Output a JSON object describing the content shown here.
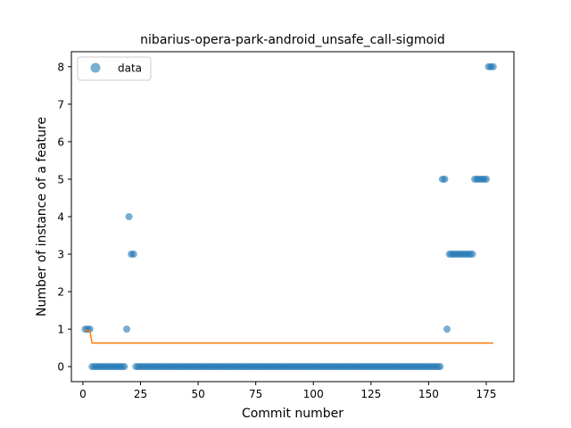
{
  "chart_data": {
    "type": "scatter",
    "title": "nibarius-opera-park-android_unsafe_call-sigmoid",
    "xlabel": "Commit number",
    "ylabel": "Number of instance of a feature",
    "xlim": [
      -5,
      187
    ],
    "ylim": [
      -0.4,
      8.4
    ],
    "xticks": [
      0,
      25,
      50,
      75,
      100,
      125,
      150,
      175
    ],
    "yticks": [
      0,
      1,
      2,
      3,
      4,
      5,
      6,
      7,
      8
    ],
    "grid": false,
    "legend": {
      "position": "top-left",
      "entries": [
        "data"
      ]
    },
    "colors": {
      "data": "#1f77b4",
      "fit": "#ff7f0e"
    },
    "series": [
      {
        "name": "data",
        "kind": "scatter",
        "x": [
          1,
          2,
          3,
          4,
          5,
          6,
          7,
          8,
          9,
          10,
          11,
          12,
          13,
          14,
          15,
          16,
          17,
          18,
          19,
          20,
          21,
          22,
          23,
          24,
          25,
          26,
          27,
          28,
          29,
          30,
          31,
          32,
          33,
          34,
          35,
          36,
          37,
          38,
          39,
          40,
          41,
          42,
          43,
          44,
          45,
          46,
          47,
          48,
          49,
          50,
          51,
          52,
          53,
          54,
          55,
          56,
          57,
          58,
          59,
          60,
          61,
          62,
          63,
          64,
          65,
          66,
          67,
          68,
          69,
          70,
          71,
          72,
          73,
          74,
          75,
          76,
          77,
          78,
          79,
          80,
          81,
          82,
          83,
          84,
          85,
          86,
          87,
          88,
          89,
          90,
          91,
          92,
          93,
          94,
          95,
          96,
          97,
          98,
          99,
          100,
          101,
          102,
          103,
          104,
          105,
          106,
          107,
          108,
          109,
          110,
          111,
          112,
          113,
          114,
          115,
          116,
          117,
          118,
          119,
          120,
          121,
          122,
          123,
          124,
          125,
          126,
          127,
          128,
          129,
          130,
          131,
          132,
          133,
          134,
          135,
          136,
          137,
          138,
          139,
          140,
          141,
          142,
          143,
          144,
          145,
          146,
          147,
          148,
          149,
          150,
          151,
          152,
          153,
          154,
          155,
          156,
          157,
          158,
          159,
          160,
          161,
          162,
          163,
          164,
          165,
          166,
          167,
          168,
          169,
          170,
          171,
          172,
          173,
          174,
          175,
          176,
          177,
          178
        ],
        "y": [
          1,
          1,
          1,
          0,
          0,
          0,
          0,
          0,
          0,
          0,
          0,
          0,
          0,
          0,
          0,
          0,
          0,
          0,
          1,
          4,
          3,
          3,
          0,
          0,
          0,
          0,
          0,
          0,
          0,
          0,
          0,
          0,
          0,
          0,
          0,
          0,
          0,
          0,
          0,
          0,
          0,
          0,
          0,
          0,
          0,
          0,
          0,
          0,
          0,
          0,
          0,
          0,
          0,
          0,
          0,
          0,
          0,
          0,
          0,
          0,
          0,
          0,
          0,
          0,
          0,
          0,
          0,
          0,
          0,
          0,
          0,
          0,
          0,
          0,
          0,
          0,
          0,
          0,
          0,
          0,
          0,
          0,
          0,
          0,
          0,
          0,
          0,
          0,
          0,
          0,
          0,
          0,
          0,
          0,
          0,
          0,
          0,
          0,
          0,
          0,
          0,
          0,
          0,
          0,
          0,
          0,
          0,
          0,
          0,
          0,
          0,
          0,
          0,
          0,
          0,
          0,
          0,
          0,
          0,
          0,
          0,
          0,
          0,
          0,
          0,
          0,
          0,
          0,
          0,
          0,
          0,
          0,
          0,
          0,
          0,
          0,
          0,
          0,
          0,
          0,
          0,
          0,
          0,
          0,
          0,
          0,
          0,
          0,
          0,
          0,
          0,
          0,
          0,
          0,
          0,
          5,
          5,
          1,
          3,
          3,
          3,
          3,
          3,
          3,
          3,
          3,
          3,
          3,
          3,
          5,
          5,
          5,
          5,
          5,
          5,
          8,
          8,
          8
        ]
      },
      {
        "name": "",
        "kind": "line",
        "x": [
          1,
          3,
          4,
          178
        ],
        "y": [
          0.98,
          0.95,
          0.63,
          0.63
        ]
      }
    ]
  }
}
